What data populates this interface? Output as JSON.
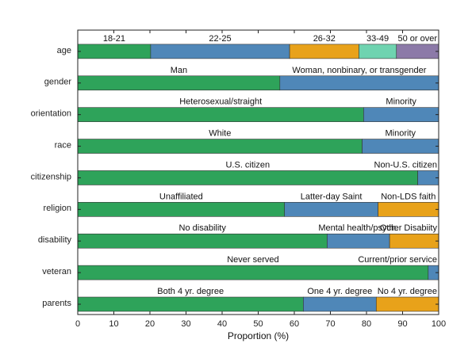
{
  "chart_data": {
    "type": "bar",
    "orientation": "horizontal",
    "stacked": true,
    "title": "",
    "xlabel": "Proportion (%)",
    "ylabel": "",
    "xlim": [
      0,
      100
    ],
    "xticks": [
      0,
      10,
      20,
      30,
      40,
      50,
      60,
      70,
      80,
      90,
      100
    ],
    "grid": false,
    "legend": "none",
    "colors": {
      "green": "#2ea35a",
      "blue": "#4f87b8",
      "orange": "#e8a21a",
      "teal": "#6fd3b0",
      "purple": "#8c7aa8"
    },
    "rows": [
      {
        "category": "age",
        "segments": [
          {
            "label": "18-21",
            "value": 20.2,
            "color": "green"
          },
          {
            "label": "22-25",
            "value": 38.5,
            "color": "blue"
          },
          {
            "label": "26-32",
            "value": 19.2,
            "color": "orange"
          },
          {
            "label": "33-49",
            "value": 10.4,
            "color": "teal"
          },
          {
            "label": "50 or over",
            "value": 11.7,
            "color": "purple"
          }
        ]
      },
      {
        "category": "gender",
        "segments": [
          {
            "label": "Man",
            "value": 56.0,
            "color": "green"
          },
          {
            "label": "Woman, nonbinary, or transgender",
            "value": 44.0,
            "color": "blue"
          }
        ]
      },
      {
        "category": "orientation",
        "segments": [
          {
            "label": "Heterosexual/straight",
            "value": 79.2,
            "color": "green"
          },
          {
            "label": "Minority",
            "value": 20.8,
            "color": "blue"
          }
        ]
      },
      {
        "category": "race",
        "segments": [
          {
            "label": "White",
            "value": 78.8,
            "color": "green"
          },
          {
            "label": "Minority",
            "value": 21.2,
            "color": "blue"
          }
        ]
      },
      {
        "category": "citizenship",
        "segments": [
          {
            "label": "U.S. citizen",
            "value": 94.2,
            "color": "green"
          },
          {
            "label": "Non-U.S. citizen",
            "value": 5.8,
            "color": "blue"
          }
        ]
      },
      {
        "category": "religion",
        "segments": [
          {
            "label": "Unaffiliated",
            "value": 57.3,
            "color": "green"
          },
          {
            "label": "Latter-day Saint",
            "value": 25.9,
            "color": "blue"
          },
          {
            "label": "Non-LDS faith",
            "value": 16.8,
            "color": "orange"
          }
        ]
      },
      {
        "category": "disability",
        "segments": [
          {
            "label": "No disability",
            "value": 69.1,
            "color": "green"
          },
          {
            "label": "Mental health/psych.",
            "value": 17.3,
            "color": "blue"
          },
          {
            "label": "Other Disabiity",
            "value": 13.6,
            "color": "orange"
          }
        ]
      },
      {
        "category": "veteran",
        "segments": [
          {
            "label": "Never served",
            "value": 97.1,
            "color": "green"
          },
          {
            "label": "Current/prior service",
            "value": 2.9,
            "color": "blue"
          }
        ]
      },
      {
        "category": "parents",
        "segments": [
          {
            "label": "Both 4 yr. degree",
            "value": 62.5,
            "color": "green"
          },
          {
            "label": "One 4 yr. degree",
            "value": 20.2,
            "color": "blue"
          },
          {
            "label": "No 4 yr. degree",
            "value": 17.3,
            "color": "orange"
          }
        ]
      }
    ]
  }
}
